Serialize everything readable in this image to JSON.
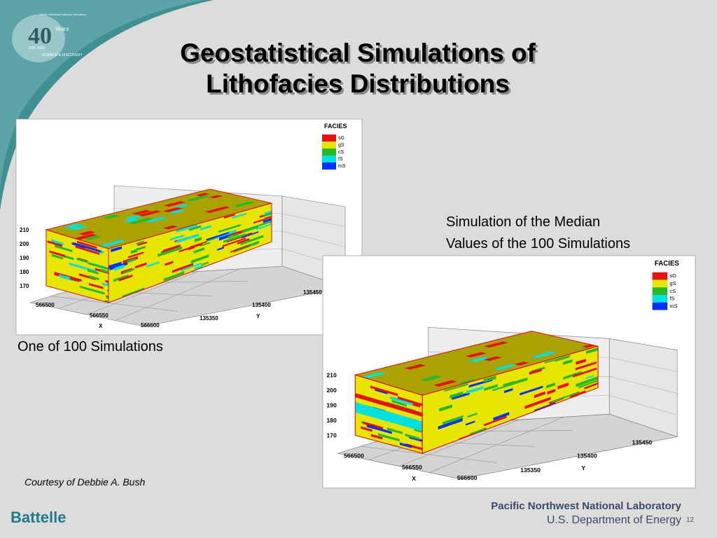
{
  "title": [
    "Geostatistical Simulations of",
    "Lithofacies Distributions"
  ],
  "logo": {
    "number": "40",
    "years": "Years",
    "org": "Pacific Northwest National Laboratory",
    "span": "1965-2005",
    "motto": "SCIENCE & DISCOVERY"
  },
  "figures": [
    {
      "caption": [
        "One of 100 Simulations"
      ],
      "legend_title": "FACIES",
      "legend": [
        "sG",
        "gS",
        "cS",
        "fS",
        "mS"
      ],
      "z_ticks": [
        "210",
        "200",
        "190",
        "180",
        "170"
      ],
      "x_ticks": [
        "566500",
        "566550",
        "566600"
      ],
      "x_label": "X",
      "y_ticks": [
        "135350",
        "135400",
        "135450"
      ],
      "y_label": "Y"
    },
    {
      "caption": [
        "Simulation of the Median",
        "Values of the 100 Simulations"
      ],
      "legend_title": "FACIES",
      "legend": [
        "sG",
        "gS",
        "cS",
        "fS",
        "mS"
      ],
      "z_ticks": [
        "210",
        "200",
        "190",
        "180",
        "170"
      ],
      "x_ticks": [
        "566500",
        "566550",
        "566600"
      ],
      "x_label": "X",
      "y_ticks": [
        "135350",
        "135400",
        "135450"
      ],
      "y_label": "Y"
    }
  ],
  "credit": "Courtesy of Debbie A. Bush",
  "footer": {
    "left": "Battelle",
    "org": "Pacific Northwest National Laboratory",
    "dept": "U.S. Department of Energy",
    "page": "12"
  }
}
